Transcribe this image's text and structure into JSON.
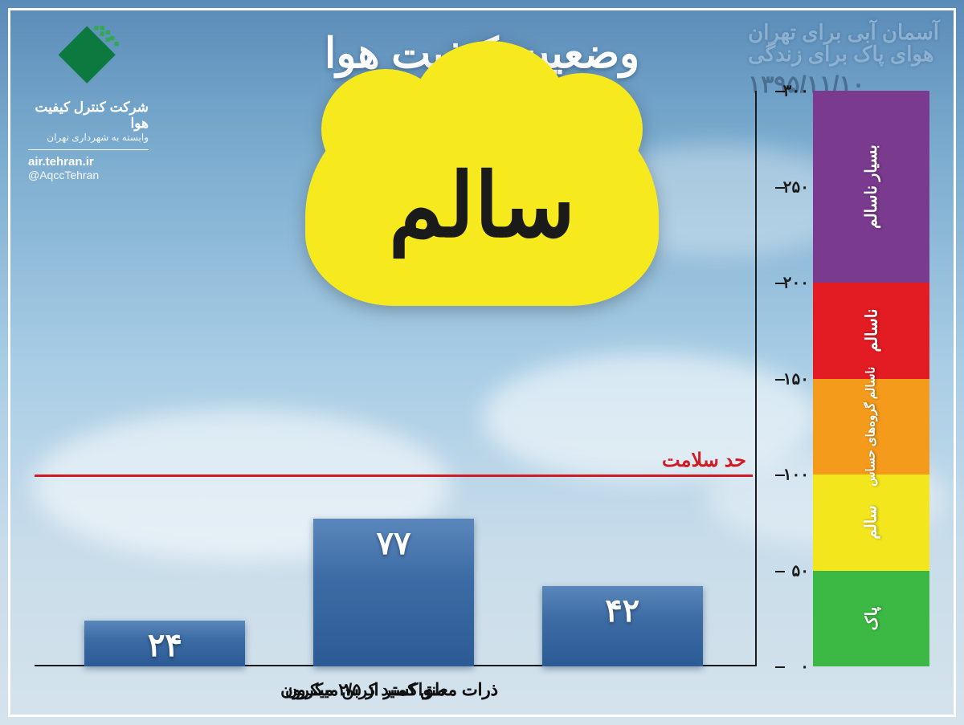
{
  "page": {
    "title": "وضعیت کیفیت هوا",
    "date": "۱۳۹۵/۱۱/۱۰",
    "slogan_line1": "آسمان آبی برای تهران",
    "slogan_line2": "هوای پاک برای زندگی"
  },
  "org": {
    "name": "شرکت کنترل کیفیت هوا",
    "sub": "وابسته به شهرداری تهران",
    "url": "air.tehran.ir",
    "handle": "@AqccTehran",
    "logo_color": "#0c7a3e"
  },
  "status": {
    "label": "سالم",
    "cloud_color": "#f6ea1f",
    "text_color": "#1a1a1a"
  },
  "chart": {
    "type": "bar",
    "y_max": 300,
    "y_min": 0,
    "tick_step": 50,
    "tick_labels": [
      "۰",
      "۵۰",
      "۱۰۰",
      "۱۵۰",
      "۲۰۰",
      "۲۵۰",
      "۳۰۰"
    ],
    "health_limit": {
      "value": 100,
      "label": "حد سلامت",
      "color": "#d11b24"
    },
    "bar_gradient_top": "#5a87bb",
    "bar_gradient_bottom": "#2b5a95",
    "value_font_size": 40,
    "label_font_size": 21,
    "axis_color": "#1a1a1a",
    "bars": [
      {
        "label": "منواکسید کربن",
        "value": 24,
        "value_text": "۲۴"
      },
      {
        "label": "ذرات معلق کمتر از ۲/۵ میکرون",
        "value": 77,
        "value_text": "۷۷"
      },
      {
        "label": "ذرات معلق کمتر از ۱۰ میکرون",
        "value": 42,
        "value_text": "۴۲"
      }
    ]
  },
  "legend": {
    "segments": [
      {
        "label": "پاک",
        "color": "#3cb944",
        "range": [
          0,
          50
        ]
      },
      {
        "label": "سالم",
        "color": "#f3e61d",
        "range": [
          50,
          100
        ]
      },
      {
        "label": "ناسالم\nگروه‌های\nحساس",
        "color": "#f49b1b",
        "range": [
          100,
          150
        ],
        "small": true
      },
      {
        "label": "ناسالم",
        "color": "#e31b23",
        "range": [
          150,
          200
        ]
      },
      {
        "label": "بسیار ناسالم",
        "color": "#7a3a8e",
        "range": [
          200,
          300
        ]
      }
    ]
  },
  "colors": {
    "sky_top": "#5a8bb8",
    "sky_bottom": "#d5e3ec",
    "frame": "#ffffff"
  }
}
